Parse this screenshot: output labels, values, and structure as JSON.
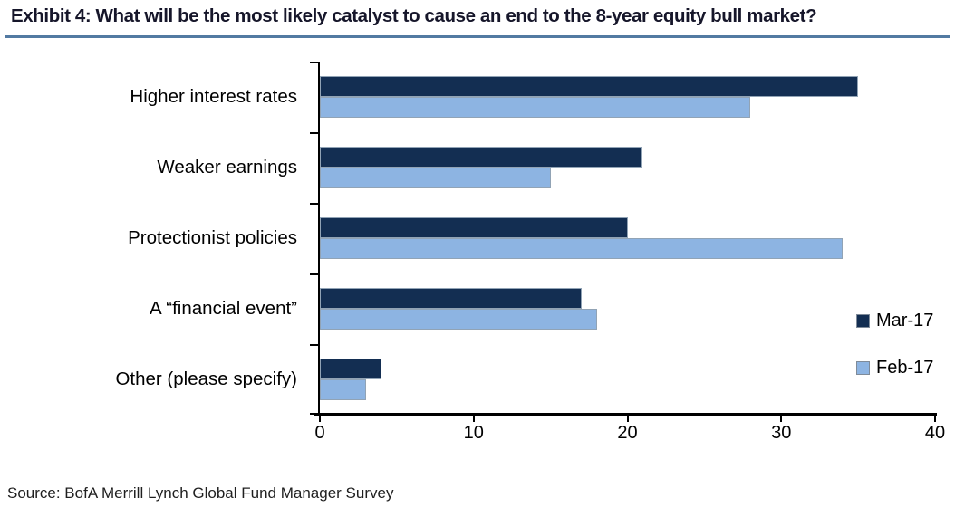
{
  "title": "Exhibit 4: What will be the most likely catalyst to cause an end to the 8-year equity bull market?",
  "source": "Source: BofA Merrill Lynch Global Fund Manager Survey",
  "colors": {
    "title_underline": "#527aa2",
    "axis": "#000000",
    "mar_17": "#132e52",
    "feb_17": "#8db4e2"
  },
  "chart_data": {
    "type": "bar",
    "orientation": "horizontal",
    "title": "Exhibit 4: What will be the most likely catalyst to cause an end to the 8-year equity bull market?",
    "categories": [
      "Higher interest rates",
      "Weaker earnings",
      "Protectionist policies",
      "A “financial event”",
      "Other (please specify)"
    ],
    "series": [
      {
        "name": "Mar-17",
        "color": "#132e52",
        "values": [
          35,
          21,
          20,
          17,
          4
        ]
      },
      {
        "name": "Feb-17",
        "color": "#8db4e2",
        "values": [
          28,
          15,
          34,
          18,
          3
        ]
      }
    ],
    "xlim": [
      0,
      40
    ],
    "xticks": [
      0,
      10,
      20,
      30,
      40
    ],
    "xlabel": "",
    "ylabel": "",
    "grid": false,
    "legend_position": "right"
  }
}
